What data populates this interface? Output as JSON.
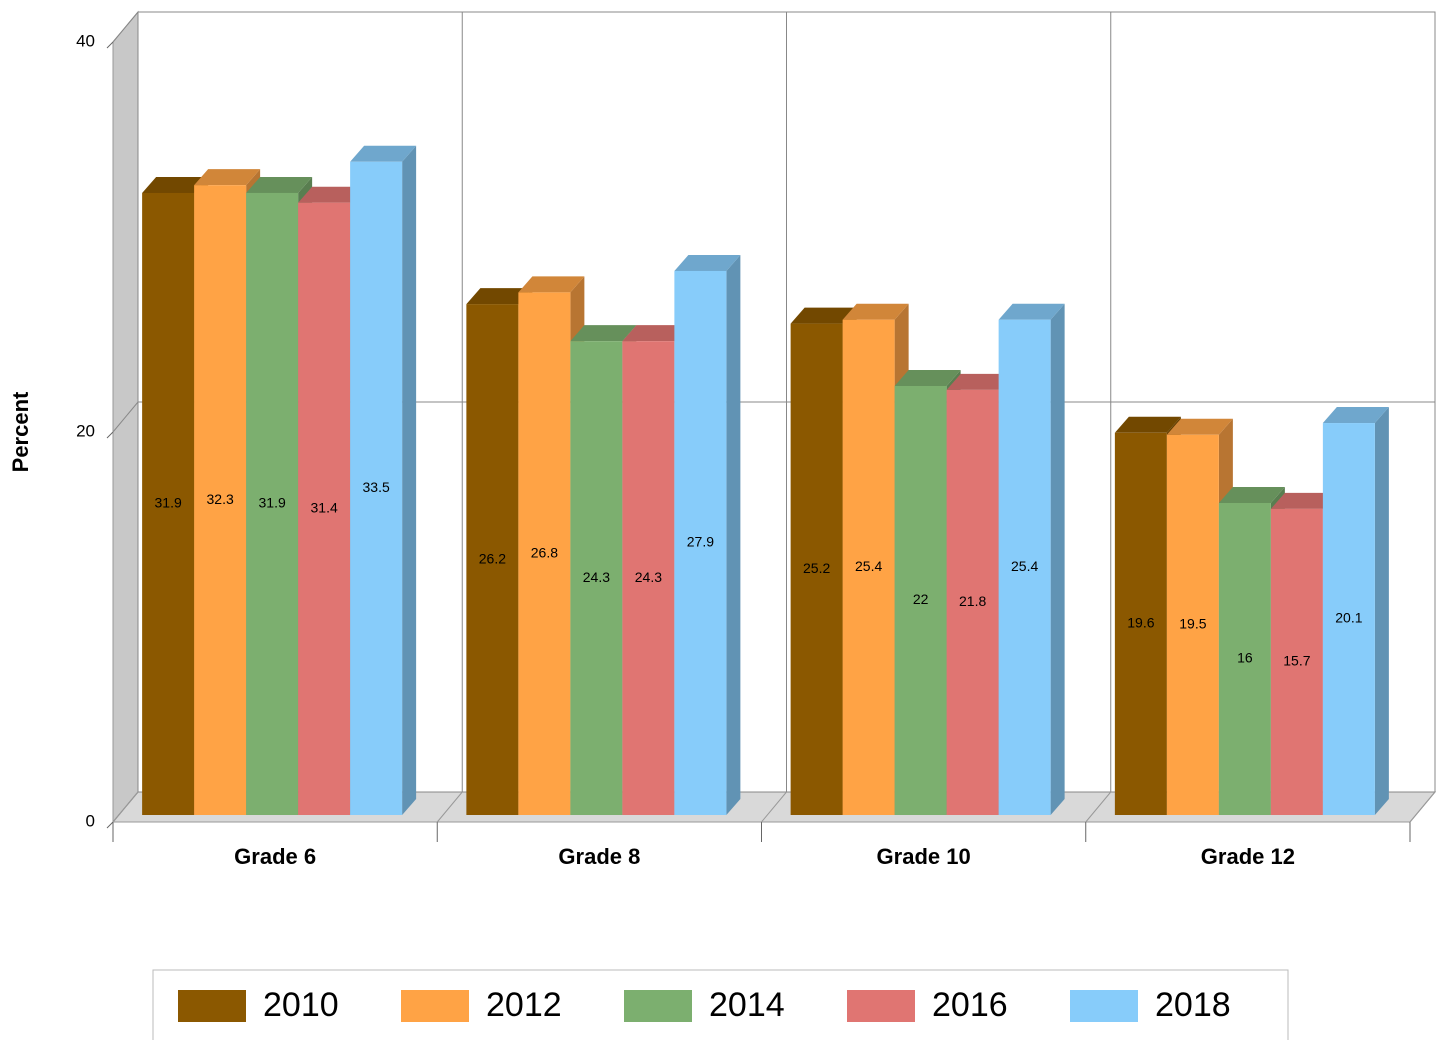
{
  "chart_data": {
    "type": "bar3d",
    "y_label": "Percent",
    "categories": [
      "Grade 6",
      "Grade 8",
      "Grade 10",
      "Grade 12"
    ],
    "series": [
      {
        "name": "2010",
        "color": "#8b5800",
        "values": [
          31.9,
          26.2,
          25.2,
          19.6
        ]
      },
      {
        "name": "2012",
        "color": "#ffa345",
        "values": [
          32.3,
          26.8,
          25.4,
          19.5
        ]
      },
      {
        "name": "2014",
        "color": "#7caf6f",
        "values": [
          31.9,
          24.3,
          22,
          16
        ]
      },
      {
        "name": "2016",
        "color": "#e07572",
        "values": [
          31.4,
          24.3,
          21.8,
          15.7
        ]
      },
      {
        "name": "2018",
        "color": "#87ccfa",
        "values": [
          33.5,
          27.9,
          25.4,
          20.1
        ]
      }
    ],
    "ylim": [
      0,
      40
    ],
    "yticks": [
      0,
      20,
      40
    ],
    "grid": true,
    "legend": "bottom"
  }
}
